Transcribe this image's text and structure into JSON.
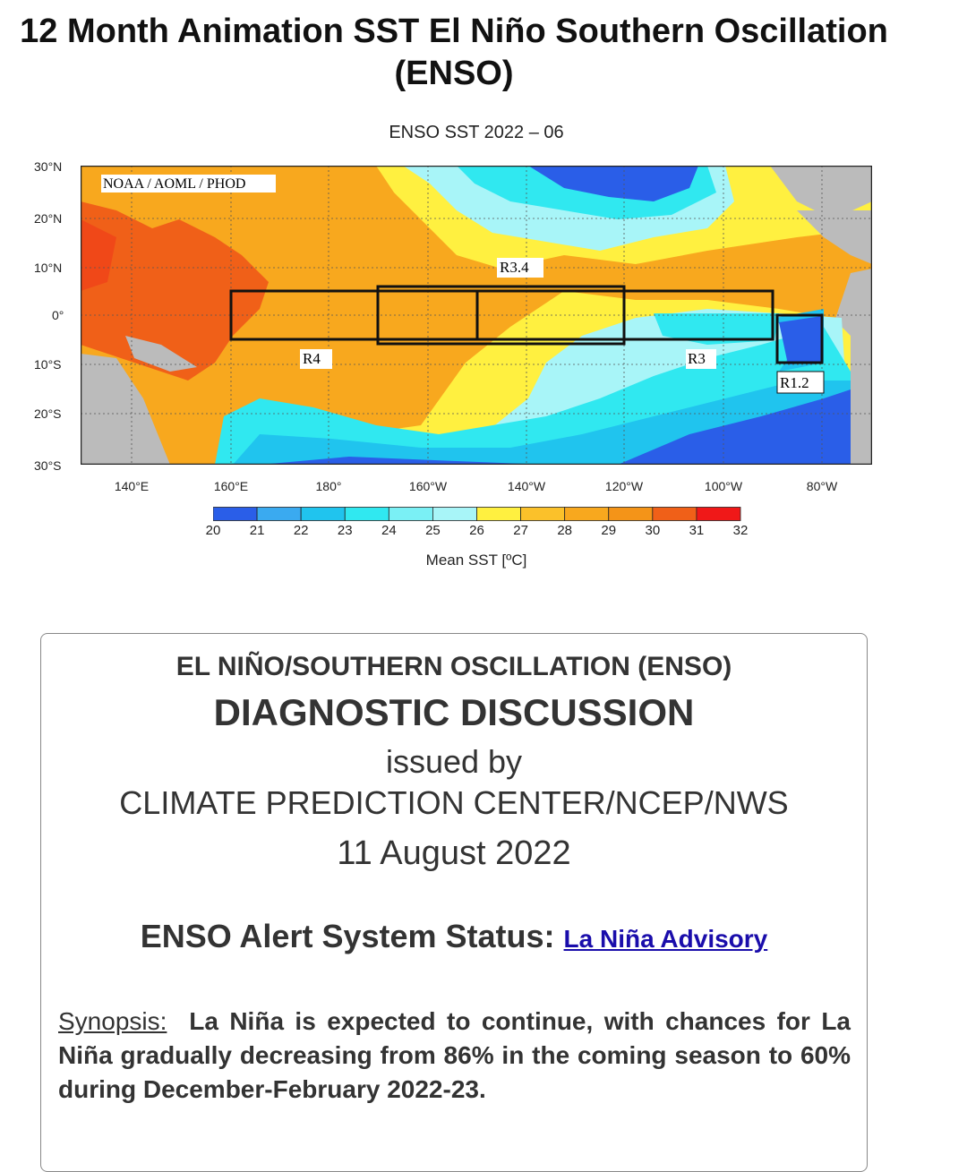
{
  "page_title": "12 Month Animation SST El Niño Southern Oscillation (ENSO)",
  "figure": {
    "title": "ENSO SST  2022 – 06",
    "credit": "NOAA / AOML / PHOD",
    "lat_labels": [
      "30°N",
      "20°N",
      "10°N",
      "0°",
      "10°S",
      "20°S",
      "30°S"
    ],
    "lon_labels": [
      "140°E",
      "160°E",
      "180°",
      "160°W",
      "140°W",
      "120°W",
      "100°W",
      "80°W"
    ],
    "regions": [
      "R4",
      "R3.4",
      "R3",
      "R1.2"
    ],
    "colorbar_ticks": [
      "20",
      "21",
      "22",
      "23",
      "24",
      "25",
      "26",
      "27",
      "28",
      "29",
      "30",
      "31",
      "32"
    ],
    "colorbar_colors": [
      "#2a5ee8",
      "#3aaaf0",
      "#20c4ee",
      "#30e8f0",
      "#7af0f5",
      "#a8f5f8",
      "#fff040",
      "#fbc12a",
      "#f8a81e",
      "#f49418",
      "#f06018",
      "#f01818"
    ],
    "colorbar_label": "Mean SST [ºC]"
  },
  "card": {
    "line1": "EL NIÑO/SOUTHERN OSCILLATION (ENSO)",
    "line2": "DIAGNOSTIC DISCUSSION",
    "line3": "issued by",
    "line4": "CLIMATE PREDICTION CENTER/NCEP/NWS",
    "date": "11 August 2022",
    "alert_label": "ENSO Alert System Status:",
    "alert_link": "La Niña Advisory",
    "synopsis_label": "Synopsis:",
    "synopsis_text": "La Niña is expected to continue, with chances for La Niña gradually decreasing from 86% in the coming season to 60% during December-February 2022-23."
  }
}
